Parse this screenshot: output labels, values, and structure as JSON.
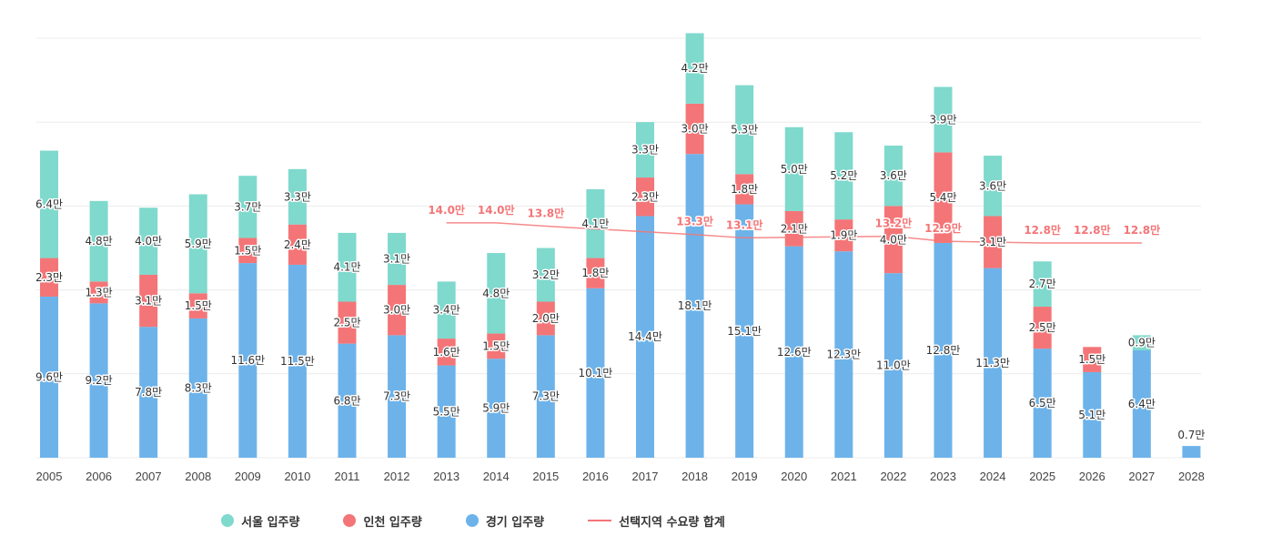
{
  "chart_data": {
    "type": "bar",
    "stacked": true,
    "categories": [
      "2005",
      "2006",
      "2007",
      "2008",
      "2009",
      "2010",
      "2011",
      "2012",
      "2013",
      "2014",
      "2015",
      "2016",
      "2017",
      "2018",
      "2019",
      "2020",
      "2021",
      "2022",
      "2023",
      "2024",
      "2025",
      "2026",
      "2027",
      "2028"
    ],
    "unit": "만",
    "series": [
      {
        "name": "경기 입주량",
        "color": "#6db3ea",
        "values": [
          9.6,
          9.2,
          7.8,
          8.3,
          11.6,
          11.5,
          6.8,
          7.3,
          5.5,
          5.9,
          7.3,
          10.1,
          14.4,
          18.1,
          15.1,
          12.6,
          12.3,
          11.0,
          12.8,
          11.3,
          6.5,
          5.1,
          6.4,
          0.7
        ]
      },
      {
        "name": "인천 입주량",
        "color": "#f47577",
        "values": [
          2.3,
          1.3,
          3.1,
          1.5,
          1.5,
          2.4,
          2.5,
          3.0,
          1.6,
          1.5,
          2.0,
          1.8,
          2.3,
          3.0,
          1.8,
          2.1,
          1.9,
          4.0,
          5.4,
          3.1,
          2.5,
          1.5,
          null,
          null
        ]
      },
      {
        "name": "서울 입주량",
        "color": "#7fd9cd",
        "values": [
          6.4,
          4.8,
          4.0,
          5.9,
          3.7,
          3.3,
          4.1,
          3.1,
          3.4,
          4.8,
          3.2,
          4.1,
          3.3,
          4.2,
          5.3,
          5.0,
          5.2,
          3.6,
          3.9,
          3.6,
          2.7,
          null,
          0.9,
          null
        ]
      }
    ],
    "line": {
      "name": "선택지역 수요량 합계",
      "color": "#f47577",
      "values": [
        null,
        null,
        null,
        null,
        null,
        null,
        null,
        null,
        14.0,
        14.0,
        13.8,
        null,
        null,
        13.3,
        13.1,
        null,
        null,
        13.2,
        12.9,
        null,
        12.8,
        12.8,
        12.8,
        null
      ],
      "labels": [
        "",
        "",
        "",
        "",
        "",
        "",
        "",
        "",
        "14.0만",
        "14.0만",
        "13.8만",
        "",
        "",
        "13.3만",
        "13.1만",
        "",
        "",
        "13.2만",
        "12.9만",
        "",
        "12.8만",
        "12.8만",
        "12.8만",
        ""
      ]
    },
    "ylim": [
      0,
      25
    ],
    "grid": true,
    "legend_position": "bottom"
  },
  "legend": [
    {
      "label": "서울 입주량",
      "color": "#7fd9cd",
      "kind": "dot"
    },
    {
      "label": "인천 입주량",
      "color": "#f47577",
      "kind": "dot"
    },
    {
      "label": "경기 입주량",
      "color": "#6db3ea",
      "kind": "dot"
    },
    {
      "label": "선택지역 수요량 합계",
      "color": "#f47577",
      "kind": "line"
    }
  ]
}
